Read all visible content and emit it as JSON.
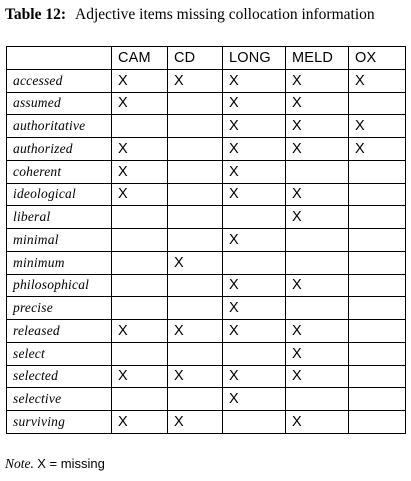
{
  "caption": {
    "label": "Table 12:",
    "title": "Adjective items missing collocation information"
  },
  "table": {
    "columns": [
      "",
      "CAM",
      "CD",
      "LONG",
      "MELD",
      "OX"
    ],
    "rows": [
      {
        "item": "accessed",
        "marks": [
          "X",
          "X",
          "X",
          "X",
          "X"
        ]
      },
      {
        "item": "assumed",
        "marks": [
          "X",
          "",
          "X",
          "X",
          ""
        ]
      },
      {
        "item": "authoritative",
        "marks": [
          "",
          "",
          "X",
          "X",
          "X"
        ]
      },
      {
        "item": "authorized",
        "marks": [
          "X",
          "",
          "X",
          "X",
          "X"
        ]
      },
      {
        "item": "coherent",
        "marks": [
          "X",
          "",
          "X",
          "",
          ""
        ]
      },
      {
        "item": "ideological",
        "marks": [
          "X",
          "",
          "X",
          "X",
          ""
        ]
      },
      {
        "item": "liberal",
        "marks": [
          "",
          "",
          "",
          "X",
          ""
        ]
      },
      {
        "item": "minimal",
        "marks": [
          "",
          "",
          "X",
          "",
          ""
        ]
      },
      {
        "item": "minimum",
        "marks": [
          "",
          "X",
          "",
          "",
          ""
        ]
      },
      {
        "item": "philosophical",
        "marks": [
          "",
          "",
          "X",
          "X",
          ""
        ]
      },
      {
        "item": "precise",
        "marks": [
          "",
          "",
          "X",
          "",
          ""
        ]
      },
      {
        "item": "released",
        "marks": [
          "X",
          "X",
          "X",
          "X",
          ""
        ]
      },
      {
        "item": "select",
        "marks": [
          "",
          "",
          "",
          "X",
          ""
        ]
      },
      {
        "item": "selected",
        "marks": [
          "X",
          "X",
          "X",
          "X",
          ""
        ]
      },
      {
        "item": "selective",
        "marks": [
          "",
          "",
          "X",
          "",
          ""
        ]
      },
      {
        "item": "surviving",
        "marks": [
          "X",
          "X",
          "",
          "X",
          ""
        ]
      }
    ]
  },
  "note": {
    "label": "Note.",
    "text": "X = missing"
  }
}
